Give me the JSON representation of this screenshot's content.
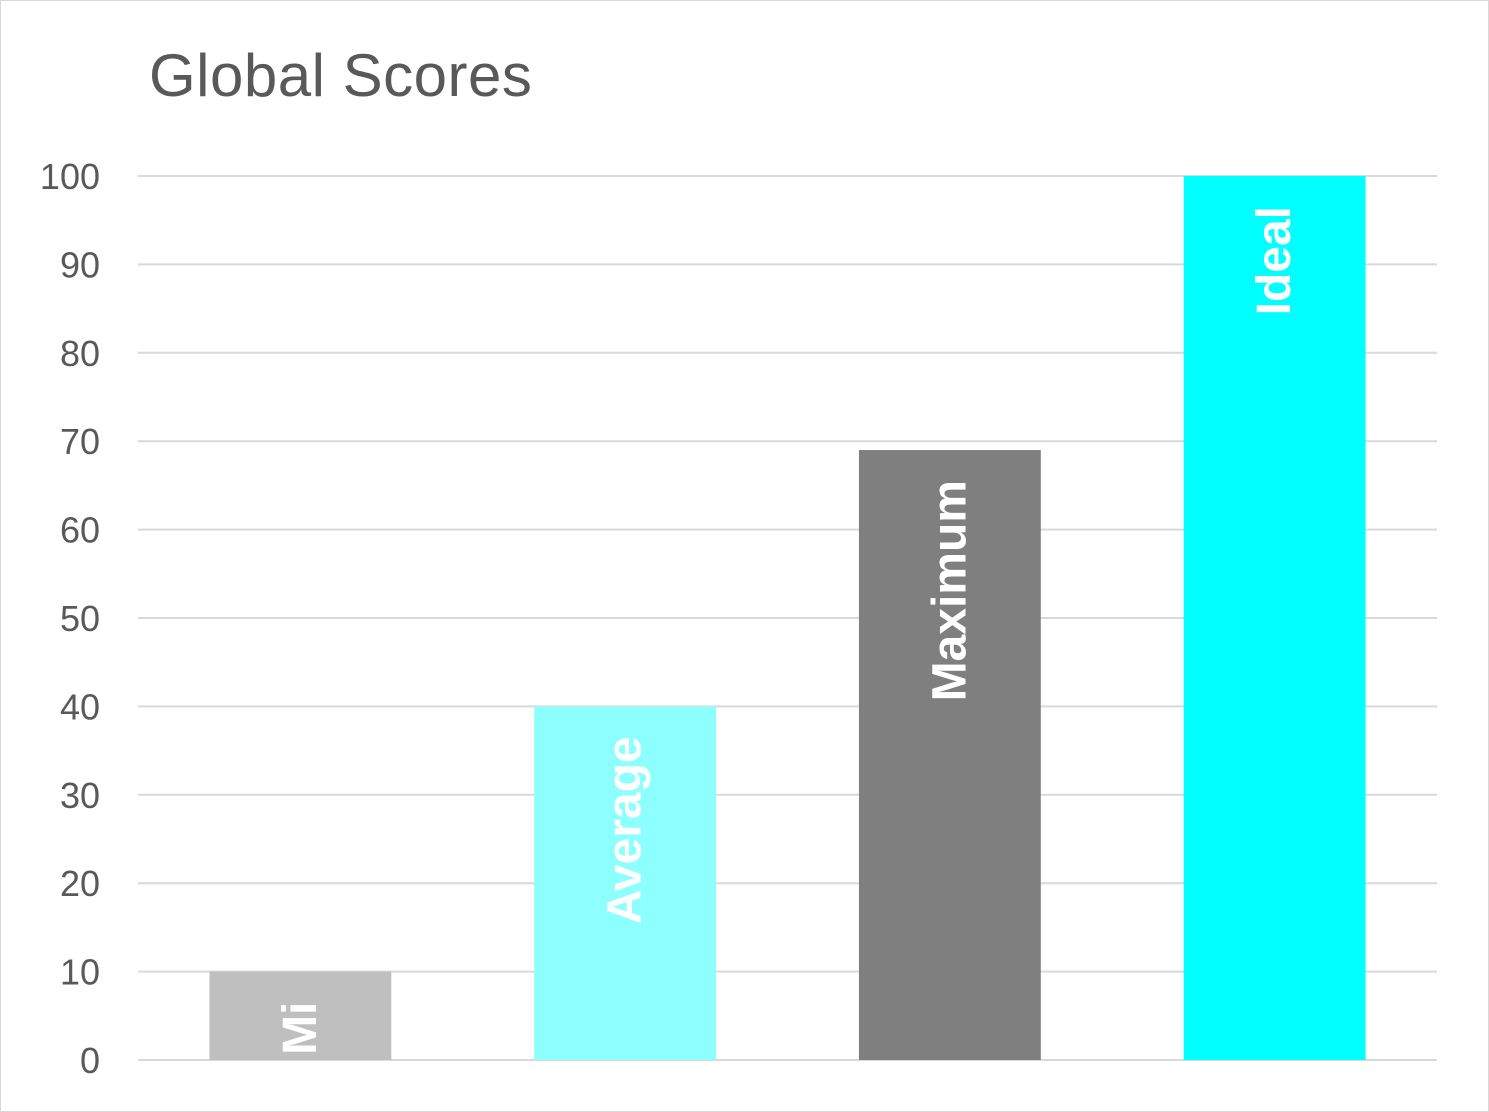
{
  "chart_data": {
    "type": "bar",
    "title": "Global Scores",
    "categories": [
      "Mi",
      "Average",
      "Maximum",
      "Ideal"
    ],
    "values": [
      10,
      40,
      69,
      100
    ],
    "colors": [
      "#bfbfbf",
      "#8effff",
      "#7f7f7f",
      "#00ffff"
    ],
    "ylim": [
      0,
      100
    ],
    "yticks": [
      "0",
      "10",
      "20",
      "30",
      "40",
      "50",
      "60",
      "70",
      "80",
      "90",
      "100"
    ],
    "grid": true,
    "legend": "none",
    "data_labels": "inside-bar-rotated"
  }
}
